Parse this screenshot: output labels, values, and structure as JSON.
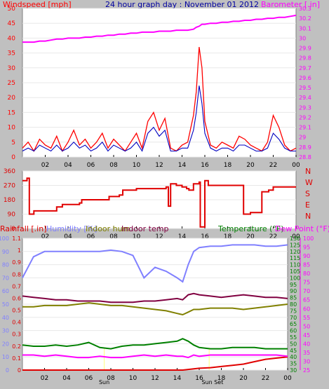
{
  "header": {
    "title": "24 hour graph day : November 01 2012",
    "left_label": "Windspeed [mph]",
    "right_label": "Barometer [.in]"
  },
  "colors": {
    "wind": "#ff0000",
    "wind_avg": "#0000c0",
    "baro": "#ff00ff",
    "direction": "#e00000",
    "rain": "#e00000",
    "humidity": "#8080ff",
    "indoor_hum": "#808000",
    "indoor_temp": "#800040",
    "temperature": "#008000",
    "dewpoint": "#ff00ff",
    "panel": "#ffffff",
    "background": "#c0c0c0"
  },
  "x_ticks": [
    "02",
    "04",
    "06",
    "08",
    "10",
    "12",
    "14",
    "16",
    "18",
    "20",
    "22",
    "00"
  ],
  "sun_labels": {
    "sunrise": "Sun",
    "sunset": "Sun Set"
  },
  "chart_data": [
    {
      "type": "line",
      "title": "24 hour graph day : November 01 2012",
      "x_hours": [
        0,
        0.5,
        1,
        1.5,
        2,
        2.5,
        3,
        3.5,
        4,
        4.5,
        5,
        5.5,
        6,
        6.5,
        7,
        7.5,
        8,
        8.5,
        9,
        9.5,
        10,
        10.5,
        11,
        11.5,
        12,
        12.5,
        13,
        13.5,
        14,
        14.5,
        15,
        15.25,
        15.5,
        15.75,
        16,
        16.5,
        17,
        17.5,
        18,
        18.5,
        19,
        19.5,
        20,
        20.5,
        21,
        21.5,
        22,
        22.5,
        23,
        23.5,
        24
      ],
      "series": [
        {
          "name": "Windspeed [mph]",
          "axis": "left",
          "values": [
            3,
            5,
            2,
            6,
            4,
            3,
            7,
            2,
            5,
            9,
            4,
            6,
            3,
            5,
            8,
            3,
            6,
            4,
            2,
            5,
            8,
            3,
            12,
            15,
            9,
            13,
            3,
            2,
            4,
            5,
            14,
            22,
            37,
            30,
            12,
            4,
            3,
            5,
            4,
            3,
            7,
            6,
            4,
            3,
            2,
            5,
            14,
            10,
            4,
            2,
            3
          ]
        },
        {
          "name": "Wind average",
          "axis": "left",
          "values": [
            2,
            3,
            2,
            4,
            3,
            2,
            4,
            2,
            3,
            5,
            3,
            4,
            2,
            3,
            5,
            2,
            4,
            3,
            2,
            3,
            5,
            2,
            8,
            10,
            7,
            9,
            2,
            2,
            3,
            3,
            9,
            15,
            24,
            18,
            8,
            3,
            2,
            3,
            3,
            2,
            4,
            4,
            3,
            2,
            2,
            3,
            8,
            6,
            3,
            2,
            2
          ]
        },
        {
          "name": "Barometer [.in]",
          "axis": "right",
          "values": [
            29.96,
            29.96,
            29.96,
            29.97,
            29.97,
            29.98,
            29.99,
            29.99,
            30.0,
            30.0,
            30.0,
            30.01,
            30.01,
            30.02,
            30.02,
            30.03,
            30.03,
            30.04,
            30.04,
            30.05,
            30.05,
            30.06,
            30.06,
            30.06,
            30.07,
            30.07,
            30.07,
            30.08,
            30.08,
            30.08,
            30.09,
            30.11,
            30.12,
            30.14,
            30.14,
            30.15,
            30.15,
            30.16,
            30.16,
            30.17,
            30.17,
            30.18,
            30.18,
            30.19,
            30.19,
            30.2,
            30.2,
            30.21,
            30.21,
            30.22,
            30.23
          ]
        }
      ],
      "left_axis": {
        "label": "Windspeed [mph]",
        "ylim": [
          0,
          50
        ],
        "ticks": [
          "0",
          "5",
          "10",
          "15",
          "20",
          "25",
          "30",
          "35",
          "40",
          "45",
          "50"
        ]
      },
      "right_axis": {
        "label": "Barometer [.in]",
        "ylim": [
          28.8,
          30.3
        ],
        "ticks": [
          "28.8",
          "28.9",
          "29",
          "29.1",
          "29.2",
          "29.3",
          "29.4",
          "29.5",
          "29.6",
          "29.7",
          "29.8",
          "29.9",
          "30",
          "30.1",
          "30.2",
          "30.3"
        ]
      }
    },
    {
      "type": "line",
      "title": "",
      "x_hours": [
        0,
        0.4,
        0.6,
        1,
        3,
        3.5,
        5,
        5.2,
        7,
        7.6,
        8.5,
        8.8,
        10,
        12.6,
        12.8,
        13,
        13.5,
        14,
        14.4,
        14.6,
        15,
        15.5,
        15.6,
        16,
        16.3,
        17,
        19,
        19.4,
        20,
        20.6,
        21,
        21.6,
        22,
        24
      ],
      "series": [
        {
          "name": "Wind direction",
          "values": [
            300,
            315,
            90,
            110,
            135,
            150,
            160,
            180,
            180,
            200,
            210,
            240,
            250,
            260,
            140,
            280,
            270,
            260,
            250,
            240,
            280,
            290,
            10,
            300,
            270,
            270,
            270,
            90,
            100,
            100,
            230,
            240,
            260,
            260
          ]
        }
      ],
      "left_axis": {
        "ylim": [
          0,
          360
        ],
        "ticks": [
          "0",
          "90",
          "180",
          "270",
          "360"
        ]
      },
      "right_axis": {
        "ticks": [
          "N",
          "E",
          "S",
          "W",
          "N"
        ]
      }
    },
    {
      "type": "line",
      "title": "",
      "x_hours": [
        0,
        1,
        2,
        3,
        4,
        5,
        6,
        7,
        8,
        9,
        10,
        11,
        12,
        13,
        14,
        14.5,
        15,
        15.5,
        16,
        17,
        18,
        19,
        20,
        21,
        22,
        23,
        24
      ],
      "series": [
        {
          "name": "Rainfall [.in]",
          "axis": "rain",
          "values": [
            0,
            0,
            0,
            0,
            0,
            0,
            0,
            0,
            0,
            0,
            0,
            0,
            0,
            0,
            0,
            0,
            0.005,
            0.01,
            0.015,
            0.02,
            0.03,
            0.04,
            0.05,
            0.07,
            0.09,
            0.1,
            0.11
          ]
        },
        {
          "name": "Humidity [%]",
          "axis": "humidity",
          "values": [
            70,
            86,
            90,
            90,
            90,
            90,
            90,
            90,
            91,
            90,
            87,
            70,
            78,
            75,
            70,
            67,
            80,
            90,
            93,
            94,
            94,
            95,
            95,
            95,
            94,
            94,
            95
          ]
        },
        {
          "name": "Indoor hum",
          "axis": "humidity",
          "values": [
            48,
            48,
            49,
            49,
            49,
            50,
            51,
            50,
            49,
            49,
            48,
            47,
            46,
            45,
            43,
            42,
            44,
            46,
            46,
            47,
            47,
            47,
            46,
            47,
            48,
            49,
            50
          ]
        },
        {
          "name": "Indoor temp",
          "axis": "temp",
          "values": [
            89,
            88,
            87,
            86,
            86,
            85,
            85,
            85,
            84,
            84,
            84,
            85,
            85,
            86,
            87,
            86,
            90,
            91,
            90,
            89,
            88,
            89,
            90,
            89,
            88,
            88,
            87
          ]
        },
        {
          "name": "Temperature (°F)",
          "axis": "temp",
          "values": [
            50,
            49,
            49,
            50,
            49,
            50,
            52,
            48,
            47,
            49,
            50,
            50,
            51,
            52,
            53,
            55,
            53,
            50,
            48,
            47,
            47,
            48,
            48,
            48,
            47,
            47,
            47
          ]
        },
        {
          "name": "Dew Point (°F)",
          "axis": "temp",
          "values": [
            42,
            42,
            41,
            42,
            41,
            40,
            40,
            41,
            40,
            40,
            41,
            42,
            41,
            42,
            41,
            41,
            40,
            42,
            41,
            42,
            42,
            42,
            42,
            42,
            42,
            42,
            41
          ]
        }
      ],
      "rain_axis": {
        "label": "Rainfall [.in]",
        "ylim": [
          0,
          1.1
        ],
        "ticks": [
          "0",
          "0.1",
          "0.2",
          "0.3",
          "0.4",
          "0.5",
          "0.6",
          "0.7",
          "0.8",
          "0.9",
          "1",
          "1.1"
        ]
      },
      "humidity_axis": {
        "ylim": [
          0,
          100
        ],
        "ticks": [
          "0",
          "10",
          "20",
          "30",
          "40",
          "50",
          "60",
          "70",
          "80",
          "90",
          "100"
        ]
      },
      "temp_axis": {
        "label": "Temperature (°F)",
        "ylim": [
          30,
          135
        ],
        "ticks": [
          "30",
          "35",
          "40",
          "45",
          "50",
          "55",
          "60",
          "65",
          "70",
          "75",
          "80",
          "85",
          "90",
          "95",
          "100",
          "105",
          "110",
          "115",
          "120",
          "125",
          "130"
        ]
      },
      "dew_axis": {
        "label": "Dew Point (°F)",
        "ticks": [
          "25",
          "30",
          "35",
          "40",
          "45",
          "50",
          "55",
          "60",
          "65",
          "70",
          "75",
          "80",
          "85",
          "90",
          "95",
          "100"
        ]
      },
      "legend": [
        "Rainfall [.in]",
        "Humidity [%]",
        "Indoor hum",
        "Indoor temp",
        "Temperature (°F)",
        "Dew Point (°F)"
      ]
    }
  ]
}
